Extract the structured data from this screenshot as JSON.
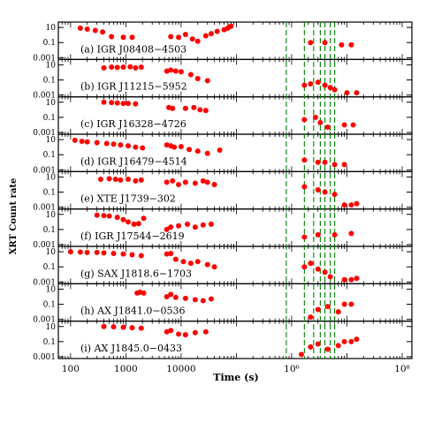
{
  "chart_data": {
    "type": "scatter",
    "xlabel": "Time (s)",
    "ylabel": "XRT Count rate",
    "xscale": "log",
    "yscale": "log",
    "xlim": [
      60,
      150000000
    ],
    "ylim": [
      0.001,
      30
    ],
    "x_ticks": [
      100,
      1000,
      10000,
      1000000,
      100000000
    ],
    "x_tick_labels": [
      "100",
      "1000",
      "10000",
      "10⁶",
      "10⁸"
    ],
    "y_ticks": [
      10,
      0.1,
      0.001
    ],
    "y_tick_labels": [
      "10",
      "0.1",
      "0.001"
    ],
    "marker_color": "#ff0000",
    "vline_color": "#008000",
    "vlines_x": [
      800000,
      1700000,
      2500000,
      3300000,
      4000000,
      5000000,
      6000000
    ],
    "panels": [
      {
        "label": "(a) IGR J08408−4503",
        "points": [
          [
            150,
            8
          ],
          [
            200,
            6
          ],
          [
            280,
            4
          ],
          [
            380,
            2.5
          ],
          [
            550,
            0.6
          ],
          [
            900,
            0.5
          ],
          [
            1300,
            0.5
          ],
          [
            6500,
            0.6
          ],
          [
            9000,
            0.5
          ],
          [
            12000,
            1.2
          ],
          [
            16000,
            0.3
          ],
          [
            20000,
            0.15
          ],
          [
            28000,
            0.8
          ],
          [
            35000,
            1.5
          ],
          [
            45000,
            3
          ],
          [
            60000,
            5
          ],
          [
            70000,
            8
          ],
          [
            75000,
            12
          ],
          [
            80000,
            15
          ],
          [
            2200000,
            0.1
          ],
          [
            4000000,
            0.1
          ],
          [
            8000000,
            0.05
          ],
          [
            12000000,
            0.05
          ]
        ]
      },
      {
        "label": "(b) IGR J11215−5952",
        "points": [
          [
            400,
            4
          ],
          [
            550,
            5
          ],
          [
            700,
            4.5
          ],
          [
            900,
            5
          ],
          [
            1200,
            5.5
          ],
          [
            1500,
            4
          ],
          [
            1900,
            5
          ],
          [
            5500,
            1.5
          ],
          [
            6500,
            2
          ],
          [
            8000,
            1.5
          ],
          [
            10000,
            1.2
          ],
          [
            15000,
            0.5
          ],
          [
            20000,
            0.15
          ],
          [
            30000,
            0.08
          ],
          [
            1700000,
            0.02
          ],
          [
            2200000,
            0.03
          ],
          [
            3000000,
            0.05
          ],
          [
            4000000,
            0.02
          ],
          [
            5000000,
            0.01
          ],
          [
            6000000,
            0.005
          ],
          [
            10000000,
            0.002
          ],
          [
            15000000,
            0.002
          ]
        ]
      },
      {
        "label": "(c) IGR J16328−4726",
        "points": [
          [
            400,
            10
          ],
          [
            550,
            9
          ],
          [
            700,
            8
          ],
          [
            900,
            7
          ],
          [
            1100,
            7
          ],
          [
            1500,
            6
          ],
          [
            6000,
            2
          ],
          [
            7000,
            1.5
          ],
          [
            12000,
            1.5
          ],
          [
            17000,
            2
          ],
          [
            22000,
            1
          ],
          [
            28000,
            0.8
          ],
          [
            1700000,
            0.05
          ],
          [
            2700000,
            0.1
          ],
          [
            3300000,
            0.02
          ],
          [
            4500000,
            0.005
          ],
          [
            9000000,
            0.01
          ],
          [
            13000000,
            0.01
          ]
        ]
      },
      {
        "label": "(d) IGR J16479−4514",
        "points": [
          [
            120,
            8
          ],
          [
            160,
            6
          ],
          [
            200,
            5
          ],
          [
            300,
            4
          ],
          [
            450,
            3
          ],
          [
            600,
            2.5
          ],
          [
            800,
            2
          ],
          [
            1100,
            1.5
          ],
          [
            1500,
            1
          ],
          [
            2000,
            0.8
          ],
          [
            5500,
            2
          ],
          [
            6500,
            1.5
          ],
          [
            7500,
            1
          ],
          [
            10000,
            1.2
          ],
          [
            14000,
            0.5
          ],
          [
            20000,
            0.3
          ],
          [
            30000,
            0.15
          ],
          [
            50000,
            0.4
          ],
          [
            1700000,
            0.02
          ],
          [
            3000000,
            0.01
          ],
          [
            4000000,
            0.01
          ],
          [
            6000000,
            0.005
          ],
          [
            9000000,
            0.005
          ]
        ]
      },
      {
        "label": "(e) XTE J1739−302",
        "points": [
          [
            350,
            5
          ],
          [
            500,
            6
          ],
          [
            650,
            5
          ],
          [
            800,
            4
          ],
          [
            1100,
            5
          ],
          [
            1500,
            3
          ],
          [
            1900,
            4
          ],
          [
            5500,
            2
          ],
          [
            7000,
            3
          ],
          [
            9000,
            1
          ],
          [
            12000,
            2
          ],
          [
            18000,
            1.5
          ],
          [
            25000,
            3
          ],
          [
            30000,
            2
          ],
          [
            40000,
            1
          ],
          [
            1700000,
            0.5
          ],
          [
            3000000,
            0.2
          ],
          [
            4000000,
            0.1
          ],
          [
            6000000,
            0.05
          ],
          [
            9000000,
            0.002
          ],
          [
            12000000,
            0.002
          ],
          [
            15000000,
            0.003
          ]
        ]
      },
      {
        "label": "(f) IGR J17544−2619",
        "points": [
          [
            300,
            8
          ],
          [
            400,
            7
          ],
          [
            500,
            6
          ],
          [
            700,
            4
          ],
          [
            900,
            2
          ],
          [
            1100,
            1
          ],
          [
            1400,
            0.5
          ],
          [
            1700,
            0.6
          ],
          [
            2100,
            3
          ],
          [
            5500,
            0.1
          ],
          [
            6500,
            0.2
          ],
          [
            9000,
            0.3
          ],
          [
            13000,
            0.5
          ],
          [
            18000,
            0.2
          ],
          [
            25000,
            0.4
          ],
          [
            35000,
            0.5
          ],
          [
            1700000,
            0.01
          ],
          [
            3000000,
            0.02
          ],
          [
            6000000,
            0.02
          ],
          [
            12000000,
            0.03
          ]
        ]
      },
      {
        "label": "(g) SAX J1818.6−1703",
        "points": [
          [
            100,
            10
          ],
          [
            150,
            9
          ],
          [
            200,
            8
          ],
          [
            300,
            8
          ],
          [
            400,
            7
          ],
          [
            600,
            6
          ],
          [
            900,
            5
          ],
          [
            1300,
            4
          ],
          [
            1900,
            3
          ],
          [
            5500,
            5
          ],
          [
            6500,
            6
          ],
          [
            8000,
            1
          ],
          [
            11000,
            0.5
          ],
          [
            15000,
            0.3
          ],
          [
            20000,
            0.5
          ],
          [
            30000,
            0.2
          ],
          [
            40000,
            0.1
          ],
          [
            1700000,
            0.1
          ],
          [
            2200000,
            0.3
          ],
          [
            3000000,
            0.05
          ],
          [
            4000000,
            0.02
          ],
          [
            5000000,
            0.005
          ],
          [
            9000000,
            0.002
          ],
          [
            12000000,
            0.002
          ],
          [
            15000000,
            0.003
          ]
        ]
      },
      {
        "label": "(h) AX J1841.0−0536",
        "points": [
          [
            1600,
            3
          ],
          [
            1800,
            4
          ],
          [
            2100,
            3
          ],
          [
            5500,
            1
          ],
          [
            6500,
            2
          ],
          [
            8000,
            0.8
          ],
          [
            12000,
            0.6
          ],
          [
            18000,
            0.4
          ],
          [
            25000,
            0.3
          ],
          [
            35000,
            0.5
          ],
          [
            2200000,
            0.002
          ],
          [
            3000000,
            0.02
          ],
          [
            4500000,
            0.05
          ],
          [
            7000000,
            0.01
          ],
          [
            9000000,
            0.1
          ],
          [
            12000000,
            0.1
          ]
        ]
      },
      {
        "label": "(i) AX J1845.0−0433",
        "points": [
          [
            400,
            10
          ],
          [
            600,
            9
          ],
          [
            900,
            8
          ],
          [
            1300,
            7
          ],
          [
            1900,
            6
          ],
          [
            5500,
            2
          ],
          [
            6500,
            3
          ],
          [
            9000,
            1
          ],
          [
            12000,
            0.8
          ],
          [
            18000,
            1.5
          ],
          [
            28000,
            2
          ],
          [
            1500000,
            0.002
          ],
          [
            2200000,
            0.02
          ],
          [
            3000000,
            0.05
          ],
          [
            4500000,
            0.01
          ],
          [
            7000000,
            0.03
          ],
          [
            9000000,
            0.1
          ],
          [
            12000000,
            0.1
          ],
          [
            15000000,
            0.2
          ]
        ]
      }
    ]
  }
}
